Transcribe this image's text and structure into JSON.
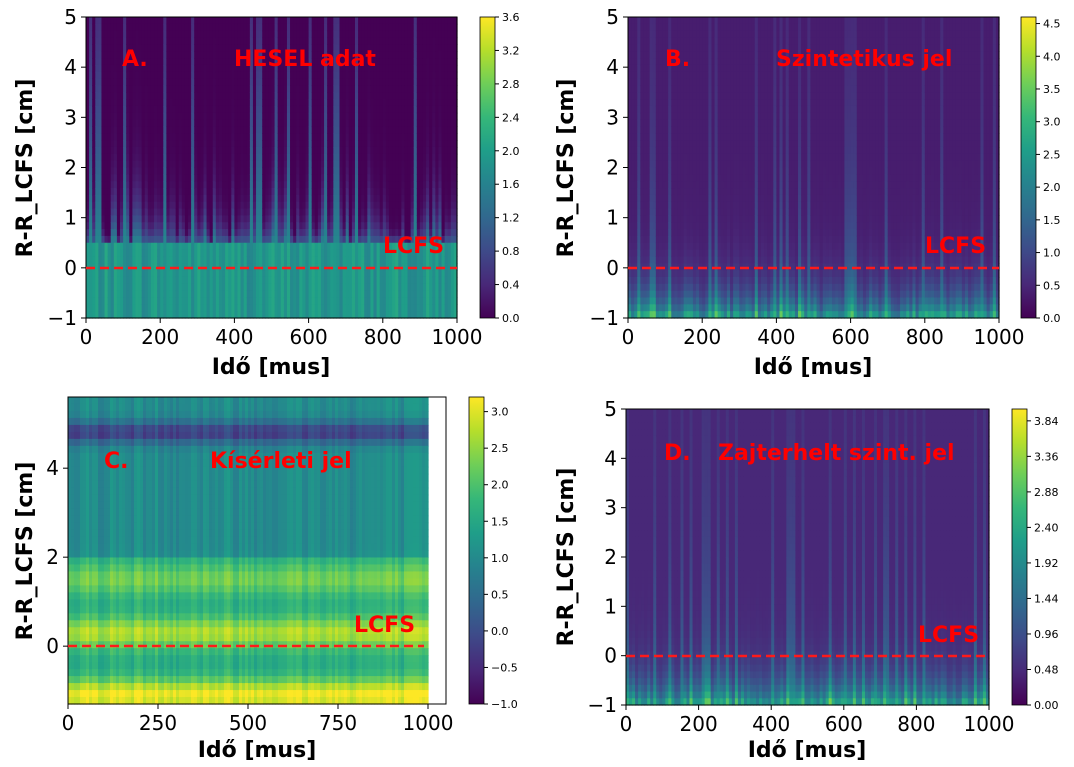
{
  "chart_data": [
    {
      "type": "heatmap",
      "panel_label": "A.",
      "title_annotation": "HESEL adat",
      "line_annotation": "LCFS",
      "xlabel": "Idő [mus]",
      "ylabel": "R-R_LCFS [cm]",
      "xlim": [
        0,
        1000
      ],
      "ylim": [
        -1,
        5
      ],
      "xticks": [
        "0",
        "200",
        "400",
        "600",
        "800",
        "1000"
      ],
      "yticks": [
        "−1",
        "0",
        "1",
        "2",
        "3",
        "4",
        "5"
      ],
      "colorbar_ticks": [
        "0.0",
        "0.4",
        "0.8",
        "1.2",
        "1.6",
        "2.0",
        "2.4",
        "2.8",
        "3.2",
        "3.6"
      ],
      "colorbar_range": [
        0,
        3.6
      ],
      "colormap": "viridis",
      "lcfs_y": 0,
      "lcfs_color": "#ff1a1a",
      "annotation_color": "#ff0000"
    },
    {
      "type": "heatmap",
      "panel_label": "B.",
      "title_annotation": "Szintetikus jel",
      "line_annotation": "LCFS",
      "xlabel": "Idő [mus]",
      "ylabel": "R-R_LCFS [cm]",
      "xlim": [
        0,
        1000
      ],
      "ylim": [
        -1,
        5
      ],
      "xticks": [
        "0",
        "200",
        "400",
        "600",
        "800",
        "1000"
      ],
      "yticks": [
        "−1",
        "0",
        "1",
        "2",
        "3",
        "4",
        "5"
      ],
      "colorbar_ticks": [
        "0.0",
        "0.5",
        "1.0",
        "1.5",
        "2.0",
        "2.5",
        "3.0",
        "3.5",
        "4.0",
        "4.5"
      ],
      "colorbar_range": [
        0,
        4.6
      ],
      "colormap": "viridis",
      "lcfs_y": 0,
      "lcfs_color": "#ff1a1a",
      "annotation_color": "#ff0000"
    },
    {
      "type": "heatmap",
      "panel_label": "C.",
      "title_annotation": "Kísérleti jel",
      "line_annotation": "LCFS",
      "xlabel": "Idő [mus]",
      "ylabel": "R-R_LCFS [cm]",
      "xlim": [
        0,
        1050
      ],
      "ylim": [
        -1.3,
        5.6
      ],
      "data_xmax": 1000,
      "xticks": [
        "0",
        "250",
        "500",
        "750",
        "1000"
      ],
      "yticks": [
        "0",
        "2",
        "4"
      ],
      "colorbar_ticks": [
        "−1.0",
        "−0.5",
        "0.0",
        "0.5",
        "1.0",
        "1.5",
        "2.0",
        "2.5",
        "3.0"
      ],
      "colorbar_range": [
        -1.0,
        3.2
      ],
      "colormap": "viridis",
      "lcfs_y": 0,
      "lcfs_color": "#ff1a1a",
      "annotation_color": "#ff0000"
    },
    {
      "type": "heatmap",
      "panel_label": "D.",
      "title_annotation": "Zajterhelt szint. jel",
      "line_annotation": "LCFS",
      "xlabel": "Idő [mus]",
      "ylabel": "R-R_LCFS [cm]",
      "xlim": [
        0,
        1000
      ],
      "ylim": [
        -1,
        5
      ],
      "xticks": [
        "0",
        "200",
        "400",
        "600",
        "800",
        "1000"
      ],
      "yticks": [
        "−1",
        "0",
        "1",
        "2",
        "3",
        "4",
        "5"
      ],
      "colorbar_ticks": [
        "0.00",
        "0.48",
        "0.96",
        "1.44",
        "1.92",
        "2.40",
        "2.88",
        "3.36",
        "3.84"
      ],
      "colorbar_range": [
        0,
        4.0
      ],
      "colormap": "viridis",
      "lcfs_y": 0,
      "lcfs_color": "#ff1a1a",
      "annotation_color": "#ff0000"
    }
  ]
}
